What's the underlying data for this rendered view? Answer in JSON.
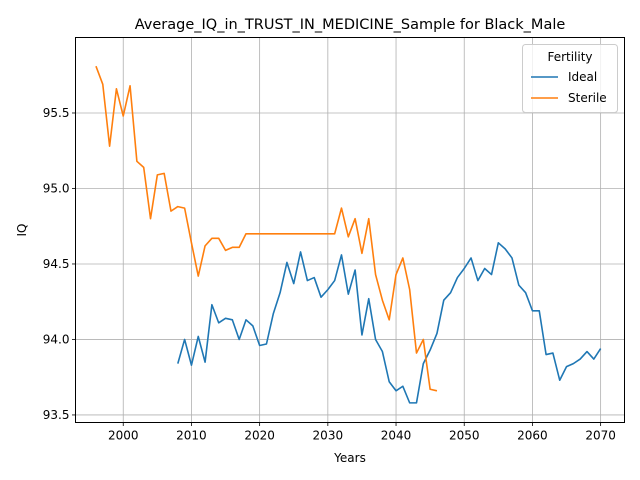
{
  "chart_data": {
    "type": "line",
    "title": "Average_IQ_in_TRUST_IN_MEDICINE_Sample for Black_Male",
    "xlabel": "Years",
    "ylabel": "IQ",
    "xlim": [
      1993,
      2073.5
    ],
    "ylim": [
      93.45,
      96.0
    ],
    "xticks": [
      2000,
      2010,
      2020,
      2030,
      2040,
      2050,
      2060,
      2070
    ],
    "xtick_labels": [
      "2000",
      "2010",
      "2020",
      "2030",
      "2040",
      "2050",
      "2060",
      "2070"
    ],
    "yticks": [
      93.5,
      94.0,
      94.5,
      95.0,
      95.5
    ],
    "ytick_labels": [
      "93.5",
      "94.0",
      "94.5",
      "95.0",
      "95.5"
    ],
    "grid": true,
    "legend": {
      "title": "Fertility",
      "position": "top-right"
    },
    "series": [
      {
        "name": "Ideal",
        "color": "#1f77b4",
        "x": [
          2008,
          2009,
          2010,
          2011,
          2012,
          2013,
          2014,
          2015,
          2016,
          2017,
          2018,
          2019,
          2020,
          2021,
          2022,
          2023,
          2024,
          2025,
          2026,
          2027,
          2028,
          2029,
          2030,
          2031,
          2032,
          2033,
          2034,
          2035,
          2036,
          2037,
          2038,
          2039,
          2040,
          2041,
          2042,
          2043,
          2044,
          2045,
          2046,
          2047,
          2048,
          2049,
          2050,
          2051,
          2052,
          2053,
          2054,
          2055,
          2056,
          2057,
          2058,
          2059,
          2060,
          2061,
          2062,
          2063,
          2064,
          2065,
          2066,
          2067,
          2068,
          2069,
          2070
        ],
        "values": [
          93.84,
          94.0,
          93.83,
          94.02,
          93.85,
          94.23,
          94.11,
          94.14,
          94.13,
          94.0,
          94.13,
          94.09,
          93.96,
          93.97,
          94.17,
          94.31,
          94.51,
          94.37,
          94.58,
          94.39,
          94.41,
          94.28,
          94.33,
          94.39,
          94.56,
          94.3,
          94.46,
          94.03,
          94.27,
          94.0,
          93.92,
          93.72,
          93.66,
          93.69,
          93.58,
          93.58,
          93.84,
          93.93,
          94.04,
          94.26,
          94.31,
          94.41,
          94.47,
          94.54,
          94.39,
          94.47,
          94.43,
          94.64,
          94.6,
          94.54,
          94.36,
          94.31,
          94.19,
          94.19,
          93.9,
          93.91,
          93.73,
          93.82,
          93.84,
          93.87,
          93.92,
          93.87,
          93.94
        ]
      },
      {
        "name": "Sterile",
        "color": "#ff7f0e",
        "x": [
          1996,
          1997,
          1998,
          1999,
          2000,
          2001,
          2002,
          2003,
          2004,
          2005,
          2006,
          2007,
          2008,
          2009,
          2010,
          2011,
          2012,
          2013,
          2014,
          2015,
          2016,
          2017,
          2018,
          2019,
          2020,
          2021,
          2022,
          2023,
          2024,
          2025,
          2026,
          2027,
          2028,
          2029,
          2030,
          2031,
          2032,
          2033,
          2034,
          2035,
          2036,
          2037,
          2038,
          2039,
          2040,
          2041,
          2042,
          2043,
          2044,
          2045,
          2046
        ],
        "values": [
          95.81,
          95.69,
          95.28,
          95.66,
          95.48,
          95.68,
          95.18,
          95.14,
          94.8,
          95.09,
          95.1,
          94.85,
          94.88,
          94.87,
          94.64,
          94.42,
          94.62,
          94.67,
          94.67,
          94.59,
          94.61,
          94.61,
          94.7,
          94.7,
          94.7,
          94.7,
          94.7,
          94.7,
          94.7,
          94.7,
          94.7,
          94.7,
          94.7,
          94.7,
          94.7,
          94.7,
          94.87,
          94.68,
          94.8,
          94.57,
          94.8,
          94.43,
          94.26,
          94.13,
          94.43,
          94.54,
          94.33,
          93.91,
          94.0,
          93.67,
          93.66
        ]
      }
    ]
  }
}
